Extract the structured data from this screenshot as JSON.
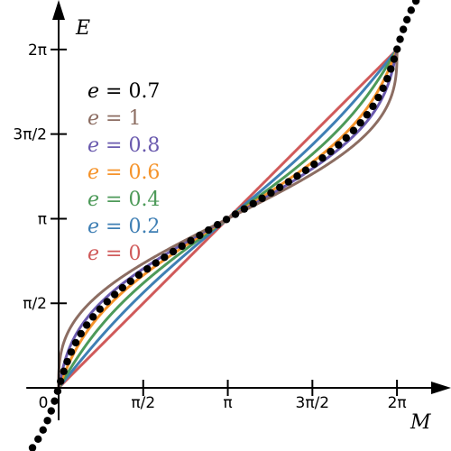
{
  "chart_data": {
    "type": "line",
    "title": "",
    "xlabel": "M",
    "ylabel": "E",
    "xlim": [
      -0.6,
      7.5
    ],
    "ylim": [
      -0.6,
      7.5
    ],
    "x_ticks": [
      {
        "value": 0,
        "label": "0"
      },
      {
        "value": 1.5708,
        "label": "π/2"
      },
      {
        "value": 3.1416,
        "label": "π"
      },
      {
        "value": 4.7124,
        "label": "3π/2"
      },
      {
        "value": 6.2832,
        "label": "2π"
      }
    ],
    "y_ticks": [
      {
        "value": 1.5708,
        "label": "π/2"
      },
      {
        "value": 3.1416,
        "label": "π"
      },
      {
        "value": 4.7124,
        "label": "3π/2"
      },
      {
        "value": 6.2832,
        "label": "2π"
      }
    ],
    "legend_position": "upper-left",
    "series": [
      {
        "name": "e = 0.7",
        "ecc": 0.7,
        "color": "#000000",
        "style": "dotted",
        "domain": [
          -0.6,
          7.5
        ],
        "legend_text": "= 0.7"
      },
      {
        "name": "e = 1",
        "ecc": 1.0,
        "color": "#8c6d62",
        "style": "solid",
        "domain": [
          0,
          6.2832
        ],
        "legend_text": "= 1"
      },
      {
        "name": "e = 0.8",
        "ecc": 0.8,
        "color": "#6a5aae",
        "style": "solid",
        "domain": [
          0,
          6.2832
        ],
        "legend_text": "= 0.8"
      },
      {
        "name": "e = 0.6",
        "ecc": 0.6,
        "color": "#f5932a",
        "style": "solid",
        "domain": [
          0,
          6.2832
        ],
        "legend_text": "= 0.6"
      },
      {
        "name": "e = 0.4",
        "ecc": 0.4,
        "color": "#4d9a59",
        "style": "solid",
        "domain": [
          0,
          6.2832
        ],
        "legend_text": "= 0.4"
      },
      {
        "name": "e = 0.2",
        "ecc": 0.2,
        "color": "#3f7fb4",
        "style": "solid",
        "domain": [
          0,
          6.2832
        ],
        "legend_text": "= 0.2"
      },
      {
        "name": "e = 0",
        "ecc": 0.0,
        "color": "#d05a5a",
        "style": "solid",
        "domain": [
          0,
          6.2832
        ],
        "legend_text": "= 0"
      }
    ],
    "legend_var": "e"
  }
}
